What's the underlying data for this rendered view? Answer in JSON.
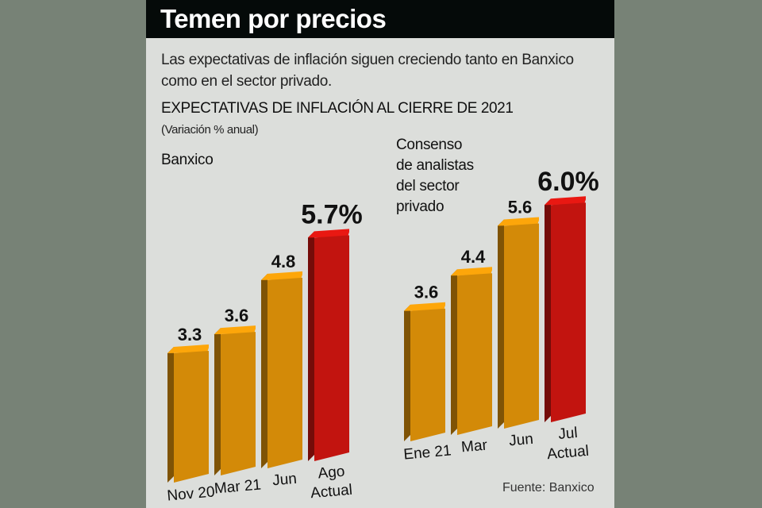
{
  "header": {
    "title": "Temen por precios"
  },
  "subtitle": "Las expectativas de inflación siguen creciendo tanto en Banxico como en el sector privado.",
  "source": "Fuente: Banxico",
  "colors": {
    "bar": "#d38a08",
    "highlight": "#c2140f",
    "background": "#dcdedb",
    "header": "#050a09"
  },
  "chart_data": {
    "type": "bar",
    "title": "EXPECTATIVAS DE INFLACIÓN AL CIERRE DE 2021",
    "subtitle": "(Variación % anual)",
    "ylim": [
      0,
      6.5
    ],
    "grid": false,
    "groups": [
      {
        "name": "Banxico",
        "categories": [
          [
            "Nov 20"
          ],
          [
            "Mar 21"
          ],
          [
            "Jun"
          ],
          [
            "Ago",
            "Actual"
          ]
        ],
        "values": [
          3.3,
          3.6,
          4.8,
          5.7
        ],
        "labels": [
          "3.3",
          "3.6",
          "4.8",
          "5.7%"
        ],
        "highlight": [
          false,
          false,
          false,
          true
        ]
      },
      {
        "name": "Consenso de analistas del sector privado",
        "name_lines": [
          "Consenso",
          "de analistas",
          "del sector",
          "privado"
        ],
        "categories": [
          [
            "Ene 21"
          ],
          [
            "Mar"
          ],
          [
            "Jun"
          ],
          [
            "Jul",
            "Actual"
          ]
        ],
        "values": [
          3.6,
          4.4,
          5.6,
          6.0
        ],
        "labels": [
          "3.6",
          "4.4",
          "5.6",
          "6.0%"
        ],
        "highlight": [
          false,
          false,
          false,
          true
        ]
      }
    ]
  }
}
